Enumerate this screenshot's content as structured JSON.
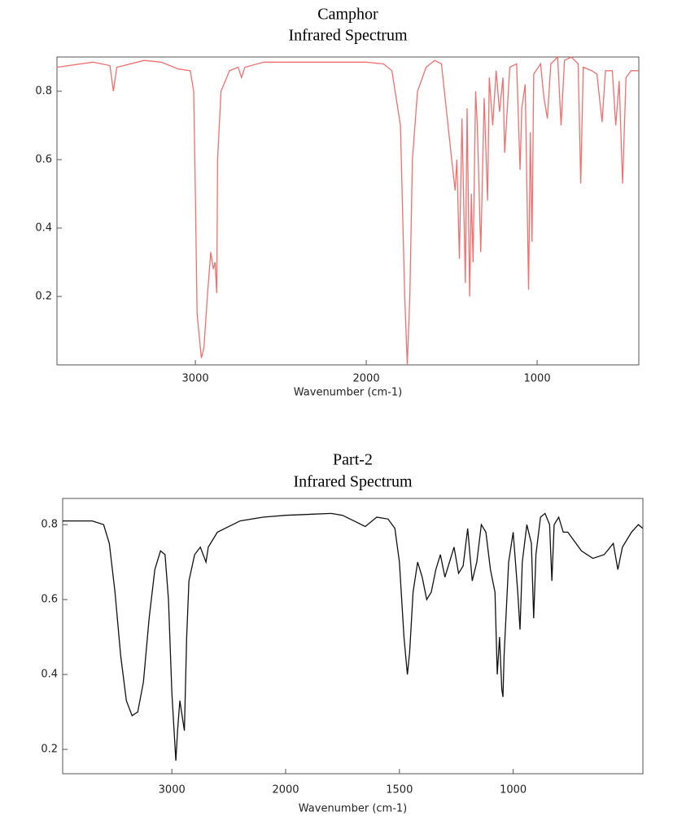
{
  "chart_data": [
    {
      "type": "line",
      "title": "Camphor",
      "subtitle": "Infrared Spectrum",
      "xlabel": "Wavenumber (cm-1)",
      "color": "#f07070",
      "xlim": [
        3810,
        405
      ],
      "ylim": [
        0,
        0.9
      ],
      "xticks": [
        3000,
        2000,
        1000
      ],
      "yticks": [
        0.2,
        0.4,
        0.6,
        0.8
      ],
      "x": [
        3810,
        3600,
        3500,
        3480,
        3460,
        3300,
        3200,
        3100,
        3030,
        3010,
        3000,
        2990,
        2965,
        2950,
        2930,
        2910,
        2895,
        2885,
        2875,
        2870,
        2850,
        2800,
        2750,
        2730,
        2710,
        2600,
        2200,
        2000,
        1900,
        1850,
        1800,
        1775,
        1760,
        1745,
        1730,
        1715,
        1700,
        1650,
        1600,
        1560,
        1500,
        1480,
        1470,
        1455,
        1440,
        1420,
        1410,
        1395,
        1385,
        1375,
        1360,
        1350,
        1330,
        1310,
        1290,
        1280,
        1260,
        1240,
        1220,
        1200,
        1190,
        1160,
        1120,
        1100,
        1090,
        1070,
        1050,
        1040,
        1030,
        1020,
        980,
        960,
        940,
        920,
        880,
        860,
        840,
        800,
        760,
        745,
        730,
        680,
        650,
        620,
        600,
        560,
        540,
        520,
        500,
        480,
        450,
        405
      ],
      "values": [
        0.87,
        0.885,
        0.875,
        0.8,
        0.87,
        0.89,
        0.885,
        0.865,
        0.86,
        0.8,
        0.5,
        0.15,
        0.02,
        0.05,
        0.2,
        0.33,
        0.28,
        0.3,
        0.21,
        0.6,
        0.8,
        0.86,
        0.87,
        0.84,
        0.87,
        0.885,
        0.885,
        0.885,
        0.88,
        0.86,
        0.7,
        0.2,
        0.0,
        0.2,
        0.6,
        0.7,
        0.8,
        0.87,
        0.89,
        0.88,
        0.6,
        0.51,
        0.6,
        0.31,
        0.72,
        0.24,
        0.75,
        0.2,
        0.5,
        0.3,
        0.8,
        0.7,
        0.33,
        0.78,
        0.48,
        0.84,
        0.7,
        0.86,
        0.74,
        0.84,
        0.62,
        0.87,
        0.88,
        0.57,
        0.75,
        0.82,
        0.22,
        0.68,
        0.36,
        0.85,
        0.88,
        0.78,
        0.72,
        0.88,
        0.9,
        0.7,
        0.89,
        0.9,
        0.88,
        0.53,
        0.87,
        0.86,
        0.85,
        0.71,
        0.86,
        0.86,
        0.7,
        0.83,
        0.53,
        0.84,
        0.86,
        0.86
      ]
    },
    {
      "type": "line",
      "title": "Part-2",
      "subtitle": "Infrared Spectrum",
      "xlabel": "Wavenumber (cm-1)",
      "color": "#111111",
      "xlim": [
        3960,
        430
      ],
      "x_scale_change": {
        "at": 2000,
        "factor": 2
      },
      "ylim": [
        0.135,
        0.87
      ],
      "xticks": [
        3000,
        2000,
        1500,
        1000
      ],
      "yticks": [
        0.2,
        0.4,
        0.6,
        0.8
      ],
      "x": [
        3960,
        3700,
        3600,
        3550,
        3500,
        3450,
        3400,
        3350,
        3300,
        3250,
        3200,
        3150,
        3100,
        3060,
        3030,
        3000,
        2965,
        2950,
        2930,
        2910,
        2890,
        2870,
        2850,
        2800,
        2750,
        2700,
        2680,
        2600,
        2400,
        2200,
        2000,
        1800,
        1750,
        1700,
        1650,
        1600,
        1550,
        1520,
        1500,
        1480,
        1465,
        1455,
        1440,
        1420,
        1400,
        1380,
        1360,
        1340,
        1320,
        1300,
        1280,
        1260,
        1240,
        1220,
        1200,
        1180,
        1160,
        1140,
        1120,
        1100,
        1080,
        1070,
        1060,
        1050,
        1045,
        1040,
        1020,
        1000,
        980,
        970,
        960,
        940,
        920,
        910,
        900,
        880,
        860,
        840,
        830,
        820,
        800,
        780,
        760,
        700,
        650,
        600,
        560,
        540,
        520,
        480,
        450,
        430
      ],
      "values": [
        0.81,
        0.81,
        0.8,
        0.75,
        0.62,
        0.45,
        0.33,
        0.29,
        0.3,
        0.38,
        0.55,
        0.68,
        0.73,
        0.72,
        0.6,
        0.35,
        0.17,
        0.25,
        0.33,
        0.29,
        0.25,
        0.5,
        0.65,
        0.72,
        0.74,
        0.7,
        0.74,
        0.78,
        0.81,
        0.82,
        0.825,
        0.83,
        0.825,
        0.81,
        0.795,
        0.82,
        0.815,
        0.79,
        0.7,
        0.5,
        0.4,
        0.46,
        0.62,
        0.7,
        0.66,
        0.6,
        0.62,
        0.68,
        0.72,
        0.66,
        0.7,
        0.74,
        0.67,
        0.69,
        0.79,
        0.65,
        0.7,
        0.8,
        0.78,
        0.68,
        0.62,
        0.4,
        0.5,
        0.36,
        0.34,
        0.45,
        0.7,
        0.78,
        0.62,
        0.52,
        0.7,
        0.8,
        0.75,
        0.55,
        0.72,
        0.82,
        0.83,
        0.8,
        0.65,
        0.8,
        0.82,
        0.78,
        0.78,
        0.73,
        0.71,
        0.72,
        0.75,
        0.68,
        0.74,
        0.78,
        0.8,
        0.79
      ]
    }
  ]
}
